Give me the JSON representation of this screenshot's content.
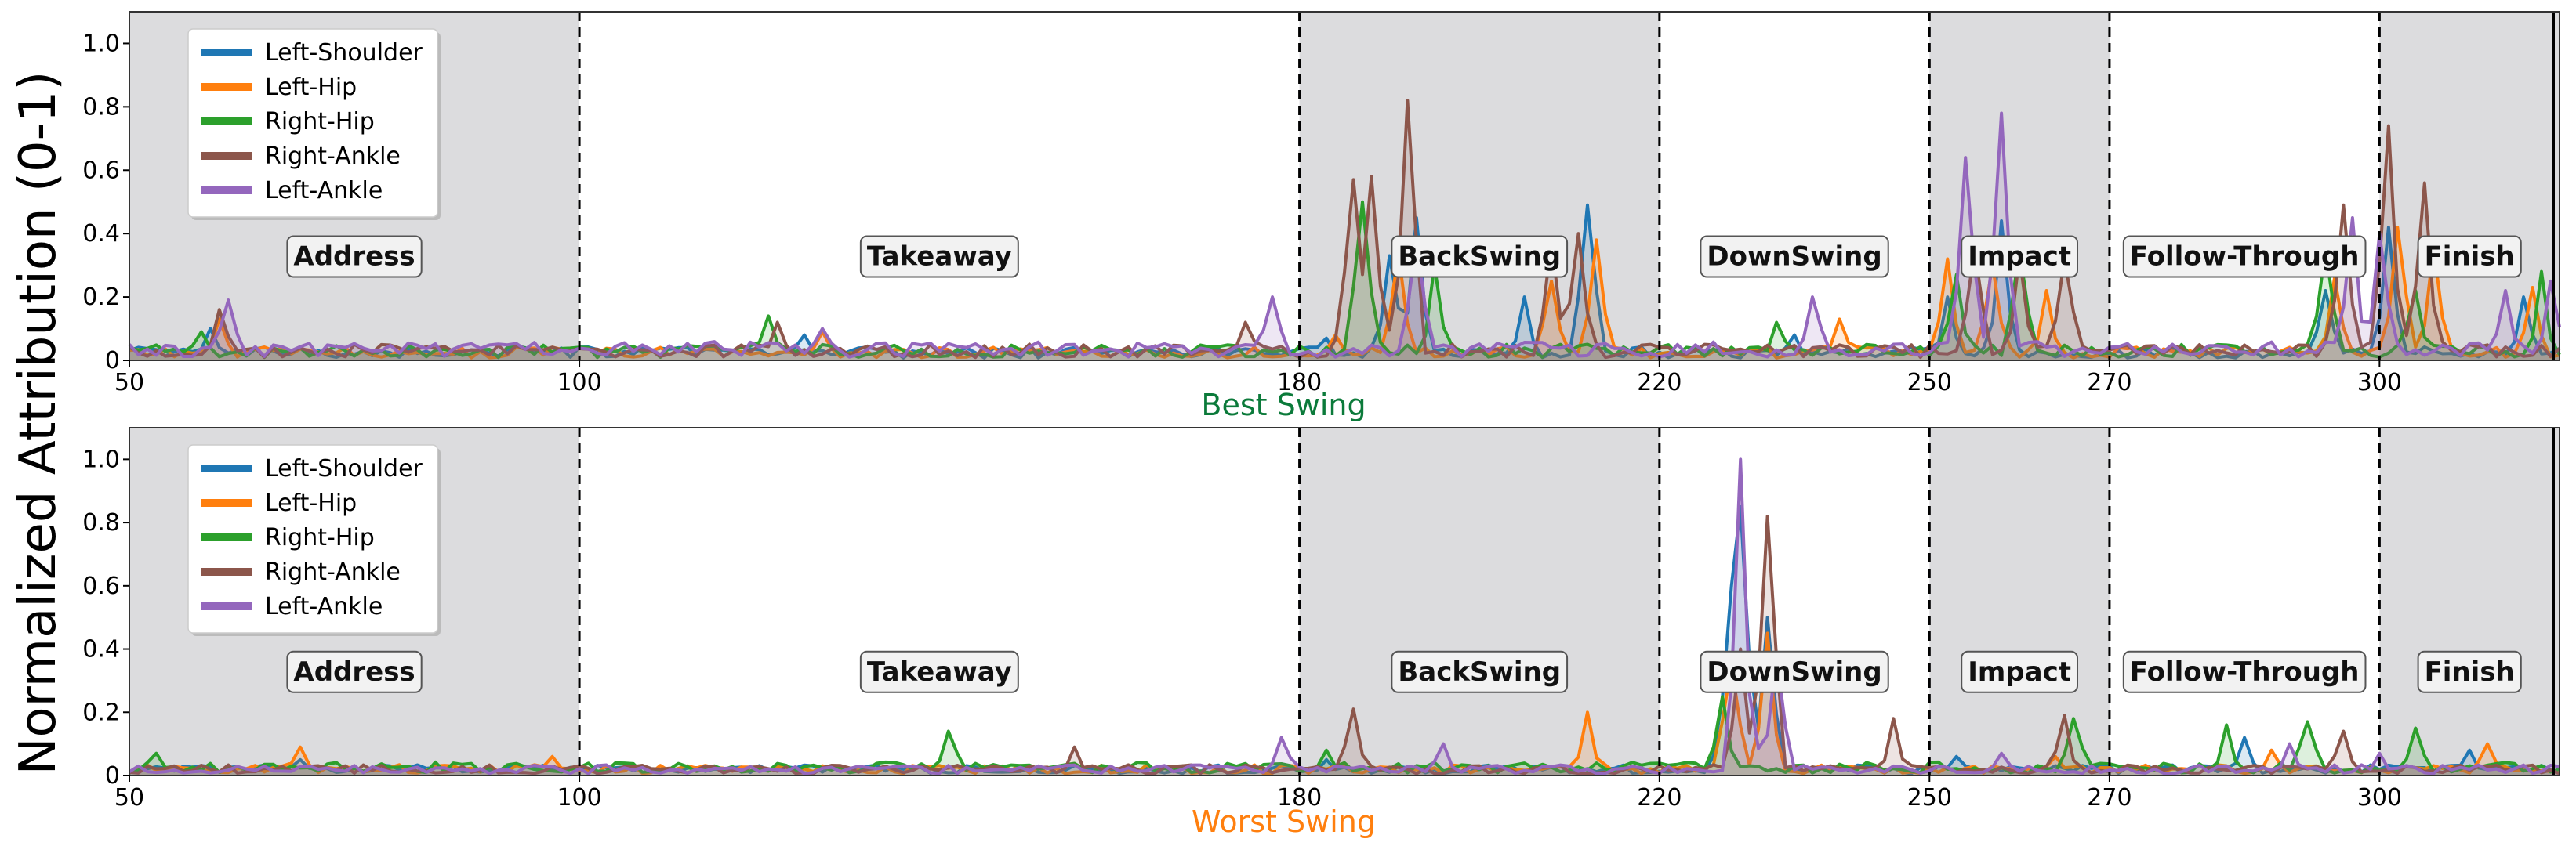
{
  "figure": {
    "ylabel": "Normalized Attribution (0-1)"
  },
  "chart_data": [
    {
      "type": "line",
      "title": "Best Swing",
      "title_color": "#0b7a3a",
      "xlim": [
        50,
        320
      ],
      "ylim": [
        0,
        1.1
      ],
      "x_ticks": [
        50,
        100,
        180,
        220,
        250,
        270,
        300
      ],
      "y_ticks": [
        0,
        0.2,
        0.4,
        0.6,
        0.8,
        1.0
      ],
      "y_tick_labels": [
        "0",
        "0.2",
        "0.4",
        "0.6",
        "0.8",
        "1.0"
      ],
      "grid": false,
      "legend": "top-left",
      "phase_boundaries": [
        100,
        180,
        220,
        250,
        270,
        300
      ],
      "phases": [
        {
          "label": "Address",
          "start": 50,
          "end": 100,
          "shaded": true
        },
        {
          "label": "Takeaway",
          "start": 100,
          "end": 180,
          "shaded": false
        },
        {
          "label": "BackSwing",
          "start": 180,
          "end": 220,
          "shaded": true
        },
        {
          "label": "DownSwing",
          "start": 220,
          "end": 250,
          "shaded": false
        },
        {
          "label": "Impact",
          "start": 250,
          "end": 270,
          "shaded": true
        },
        {
          "label": "Follow-Through",
          "start": 270,
          "end": 300,
          "shaded": false
        },
        {
          "label": "Finish",
          "start": 300,
          "end": 320,
          "shaded": true
        }
      ],
      "series": [
        {
          "name": "Left-Shoulder",
          "color": "#1f77b4",
          "baseline": 0.025,
          "peaks": [
            [
              59,
              0.1
            ],
            [
              125,
              0.08
            ],
            [
              183,
              0.07
            ],
            [
              190,
              0.33
            ],
            [
              193,
              0.45
            ],
            [
              205,
              0.2
            ],
            [
              212,
              0.49
            ],
            [
              235,
              0.08
            ],
            [
              252,
              0.2
            ],
            [
              258,
              0.44
            ],
            [
              294,
              0.22
            ],
            [
              301,
              0.42
            ],
            [
              316,
              0.2
            ]
          ]
        },
        {
          "name": "Left-Hip",
          "color": "#ff7f0e",
          "baseline": 0.025,
          "peaks": [
            [
              60,
              0.13
            ],
            [
              127,
              0.09
            ],
            [
              184,
              0.08
            ],
            [
              191,
              0.34
            ],
            [
              208,
              0.25
            ],
            [
              213,
              0.38
            ],
            [
              240,
              0.13
            ],
            [
              252,
              0.32
            ],
            [
              257,
              0.3
            ],
            [
              263,
              0.22
            ],
            [
              295,
              0.26
            ],
            [
              302,
              0.42
            ],
            [
              306,
              0.36
            ],
            [
              317,
              0.23
            ]
          ]
        },
        {
          "name": "Right-Hip",
          "color": "#2ca02c",
          "baseline": 0.03,
          "peaks": [
            [
              58,
              0.09
            ],
            [
              121,
              0.14
            ],
            [
              169,
              0.04
            ],
            [
              187,
              0.5
            ],
            [
              195,
              0.3
            ],
            [
              233,
              0.12
            ],
            [
              253,
              0.27
            ],
            [
              260,
              0.35
            ],
            [
              294,
              0.35
            ],
            [
              304,
              0.22
            ],
            [
              318,
              0.28
            ]
          ]
        },
        {
          "name": "Right-Ankle",
          "color": "#8c564b",
          "baseline": 0.03,
          "peaks": [
            [
              60,
              0.16
            ],
            [
              122,
              0.12
            ],
            [
              174,
              0.12
            ],
            [
              186,
              0.57
            ],
            [
              188,
              0.58
            ],
            [
              192,
              0.82
            ],
            [
              208,
              0.38
            ],
            [
              211,
              0.4
            ],
            [
              255,
              0.35
            ],
            [
              260,
              0.33
            ],
            [
              265,
              0.32
            ],
            [
              296,
              0.49
            ],
            [
              301,
              0.74
            ],
            [
              305,
              0.56
            ]
          ]
        },
        {
          "name": "Left-Ankle",
          "color": "#9467bd",
          "baseline": 0.035,
          "peaks": [
            [
              61,
              0.19
            ],
            [
              127,
              0.1
            ],
            [
              177,
              0.2
            ],
            [
              193,
              0.38
            ],
            [
              237,
              0.2
            ],
            [
              254,
              0.64
            ],
            [
              258,
              0.78
            ],
            [
              297,
              0.45
            ],
            [
              300,
              0.4
            ],
            [
              314,
              0.22
            ],
            [
              319,
              0.25
            ]
          ]
        }
      ]
    },
    {
      "type": "line",
      "title": "Worst Swing",
      "title_color": "#ff7f0e",
      "xlim": [
        50,
        320
      ],
      "ylim": [
        0,
        1.1
      ],
      "x_ticks": [
        50,
        100,
        180,
        220,
        250,
        270,
        300
      ],
      "y_ticks": [
        0,
        0.2,
        0.4,
        0.6,
        0.8,
        1.0
      ],
      "y_tick_labels": [
        "0",
        "0.2",
        "0.4",
        "0.6",
        "0.8",
        "1.0"
      ],
      "grid": false,
      "legend": "top-left",
      "phase_boundaries": [
        100,
        180,
        220,
        250,
        270,
        300
      ],
      "phases": [
        {
          "label": "Address",
          "start": 50,
          "end": 100,
          "shaded": true
        },
        {
          "label": "Takeaway",
          "start": 100,
          "end": 180,
          "shaded": false
        },
        {
          "label": "BackSwing",
          "start": 180,
          "end": 220,
          "shaded": true
        },
        {
          "label": "DownSwing",
          "start": 220,
          "end": 250,
          "shaded": false
        },
        {
          "label": "Impact",
          "start": 250,
          "end": 270,
          "shaded": true
        },
        {
          "label": "Follow-Through",
          "start": 270,
          "end": 300,
          "shaded": false
        },
        {
          "label": "Finish",
          "start": 300,
          "end": 320,
          "shaded": true
        }
      ],
      "series": [
        {
          "name": "Left-Shoulder",
          "color": "#1f77b4",
          "baseline": 0.02,
          "peaks": [
            [
              69,
              0.05
            ],
            [
              183,
              0.05
            ],
            [
              228,
              0.6
            ],
            [
              229,
              0.85
            ],
            [
              232,
              0.5
            ],
            [
              253,
              0.06
            ],
            [
              285,
              0.12
            ],
            [
              310,
              0.08
            ]
          ]
        },
        {
          "name": "Left-Hip",
          "color": "#ff7f0e",
          "baseline": 0.02,
          "peaks": [
            [
              69,
              0.09
            ],
            [
              97,
              0.06
            ],
            [
              212,
              0.2
            ],
            [
              228,
              0.35
            ],
            [
              232,
              0.45
            ],
            [
              264,
              0.06
            ],
            [
              288,
              0.08
            ],
            [
              312,
              0.1
            ]
          ]
        },
        {
          "name": "Right-Hip",
          "color": "#2ca02c",
          "baseline": 0.025,
          "peaks": [
            [
              53,
              0.07
            ],
            [
              141,
              0.14
            ],
            [
              183,
              0.08
            ],
            [
              227,
              0.25
            ],
            [
              266,
              0.18
            ],
            [
              283,
              0.16
            ],
            [
              292,
              0.17
            ],
            [
              304,
              0.15
            ]
          ]
        },
        {
          "name": "Right-Ankle",
          "color": "#8c564b",
          "baseline": 0.02,
          "peaks": [
            [
              155,
              0.09
            ],
            [
              186,
              0.21
            ],
            [
              229,
              0.4
            ],
            [
              232,
              0.82
            ],
            [
              246,
              0.18
            ],
            [
              265,
              0.19
            ],
            [
              296,
              0.14
            ]
          ]
        },
        {
          "name": "Left-Ankle",
          "color": "#9467bd",
          "baseline": 0.02,
          "peaks": [
            [
              178,
              0.12
            ],
            [
              196,
              0.1
            ],
            [
              229,
              1.0
            ],
            [
              233,
              0.38
            ],
            [
              258,
              0.07
            ],
            [
              290,
              0.1
            ],
            [
              300,
              0.07
            ]
          ]
        }
      ]
    }
  ]
}
